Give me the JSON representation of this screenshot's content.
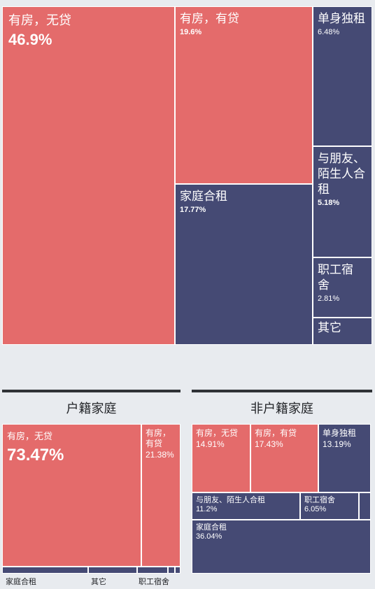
{
  "chart_data": [
    {
      "type": "treemap",
      "title": "",
      "cells": [
        {
          "name": "有房，无贷",
          "value": 46.9,
          "display": "46.9%",
          "color": "#e46b6b"
        },
        {
          "name": "有房，有贷",
          "value": 19.6,
          "display": "19.6%",
          "color": "#e46b6b"
        },
        {
          "name": "家庭合租",
          "value": 17.77,
          "display": "17.77%",
          "color": "#454a74"
        },
        {
          "name": "单身独租",
          "value": 6.48,
          "display": "6.48%",
          "color": "#454a74"
        },
        {
          "name": "与朋友、陌生人合租",
          "value": 5.18,
          "display": "5.18%",
          "color": "#454a74"
        },
        {
          "name": "职工宿舍",
          "value": 2.81,
          "display": "2.81%",
          "color": "#454a74"
        },
        {
          "name": "其它",
          "color": "#454a74"
        }
      ]
    },
    {
      "type": "treemap",
      "title": "户籍家庭",
      "cells": [
        {
          "name": "有房，无贷",
          "value": 73.47,
          "display": "73.47%",
          "color": "#e46b6b"
        },
        {
          "name": "有房，有贷",
          "value": 21.38,
          "display": "21.38%",
          "color": "#e46b6b"
        },
        {
          "name": "家庭合租",
          "color": "#454a74"
        },
        {
          "name": "其它",
          "color": "#454a74"
        },
        {
          "name": "职工宿舍",
          "color": "#454a74"
        }
      ]
    },
    {
      "type": "treemap",
      "title": "非户籍家庭",
      "cells": [
        {
          "name": "有房，无贷",
          "value": 14.91,
          "display": "14.91%",
          "color": "#e46b6b"
        },
        {
          "name": "有房，有贷",
          "value": 17.43,
          "display": "17.43%",
          "color": "#e46b6b"
        },
        {
          "name": "单身独租",
          "value": 13.19,
          "display": "13.19%",
          "color": "#454a74"
        },
        {
          "name": "与朋友、陌生人合租",
          "value": 11.2,
          "display": "11.2%",
          "color": "#454a74"
        },
        {
          "name": "职工宿舍",
          "value": 6.05,
          "display": "6.05%",
          "color": "#454a74"
        },
        {
          "name": "家庭合租",
          "value": 36.04,
          "display": "36.04%",
          "color": "#454a74"
        }
      ]
    }
  ]
}
